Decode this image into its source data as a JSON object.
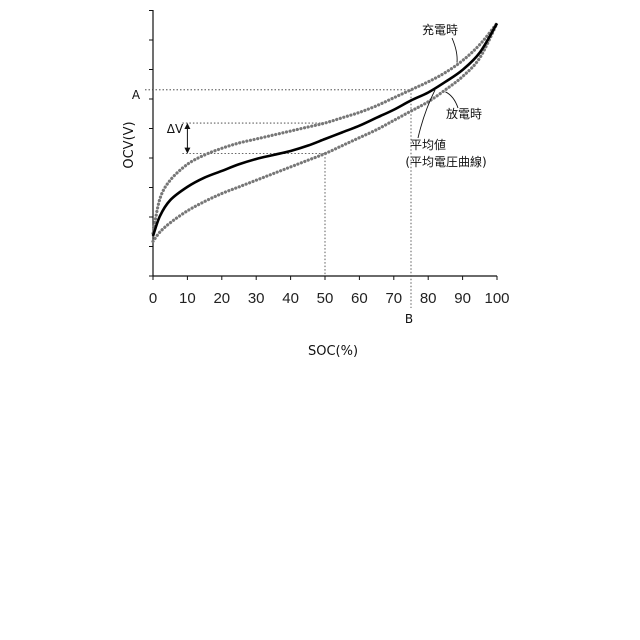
{
  "chart_data": {
    "type": "line",
    "title": "",
    "xlabel": "SOC(%)",
    "ylabel": "OCV(V)",
    "xlim": [
      0,
      100
    ],
    "x_ticks": [
      0,
      10,
      20,
      30,
      40,
      50,
      60,
      70,
      80,
      90,
      100
    ],
    "grid": false,
    "legend": "none",
    "series": [
      {
        "name": "充電時",
        "style": "dotted",
        "x": [
          0,
          2,
          5,
          10,
          15,
          20,
          25,
          30,
          35,
          40,
          45,
          50,
          55,
          60,
          65,
          70,
          75,
          80,
          85,
          90,
          95,
          100
        ],
        "y": [
          0.16,
          0.29,
          0.36,
          0.42,
          0.455,
          0.48,
          0.5,
          0.515,
          0.53,
          0.545,
          0.56,
          0.575,
          0.595,
          0.615,
          0.64,
          0.67,
          0.7,
          0.73,
          0.765,
          0.81,
          0.87,
          0.95
        ]
      },
      {
        "name": "放電時",
        "style": "dotted",
        "x": [
          0,
          2,
          5,
          10,
          15,
          20,
          25,
          30,
          35,
          40,
          45,
          50,
          55,
          60,
          65,
          70,
          75,
          80,
          85,
          90,
          95,
          100
        ],
        "y": [
          0.13,
          0.165,
          0.2,
          0.245,
          0.28,
          0.31,
          0.335,
          0.36,
          0.385,
          0.41,
          0.435,
          0.46,
          0.49,
          0.52,
          0.55,
          0.585,
          0.62,
          0.655,
          0.7,
          0.75,
          0.82,
          0.95
        ]
      },
      {
        "name": "平均値\n(平均電圧曲線)",
        "style": "solid",
        "x": [
          0,
          2,
          5,
          10,
          15,
          20,
          25,
          30,
          35,
          40,
          45,
          50,
          55,
          60,
          65,
          70,
          75,
          80,
          85,
          90,
          95,
          100
        ],
        "y": [
          0.15,
          0.225,
          0.285,
          0.335,
          0.37,
          0.395,
          0.42,
          0.44,
          0.455,
          0.47,
          0.49,
          0.515,
          0.54,
          0.565,
          0.595,
          0.625,
          0.66,
          0.69,
          0.73,
          0.775,
          0.84,
          0.95
        ]
      }
    ],
    "annotations": {
      "A": "A",
      "B": "B",
      "delta_v": "ΔV",
      "charge": "充電時",
      "discharge": "放電時",
      "average_line1": "平均値",
      "average_line2": "(平均電圧曲線)",
      "guide_x_b": 75,
      "guide_y_a": 0.7,
      "guide_x_mid": 50,
      "delta_x": 10,
      "delta_top": 0.575,
      "delta_bottom": 0.46
    }
  }
}
